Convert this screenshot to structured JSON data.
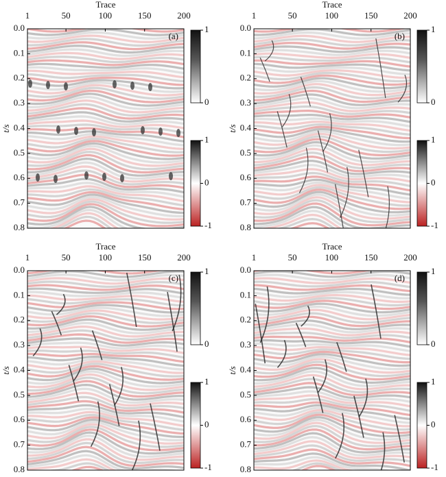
{
  "figure": {
    "x_label": "Trace",
    "y_label": "t/s",
    "xlim": [
      1,
      200
    ],
    "xticks": [
      1,
      50,
      100,
      150,
      200
    ],
    "ylim": [
      0,
      0.8
    ],
    "yticks": [
      {
        "value": 0,
        "label": "0.0"
      },
      {
        "value": 0.1,
        "label": "0.1"
      },
      {
        "value": 0.2,
        "label": "0.2"
      },
      {
        "value": 0.3,
        "label": "0.3"
      },
      {
        "value": 0.4,
        "label": "0.4"
      },
      {
        "value": 0.5,
        "label": "0.5"
      },
      {
        "value": 0.6,
        "label": "0.6"
      },
      {
        "value": 0.7,
        "label": "0.7"
      },
      {
        "value": 0.8,
        "label": "0.8"
      }
    ],
    "panels": [
      {
        "label": "(a)"
      },
      {
        "label": "(b)"
      },
      {
        "label": "(c)"
      },
      {
        "label": "(d)"
      }
    ],
    "colorbar_top": {
      "lim": [
        0,
        1
      ],
      "ticks": [
        1,
        0
      ]
    },
    "colorbar_bottom": {
      "lim": [
        -1,
        1
      ],
      "ticks": [
        1,
        0,
        -1
      ]
    }
  }
}
